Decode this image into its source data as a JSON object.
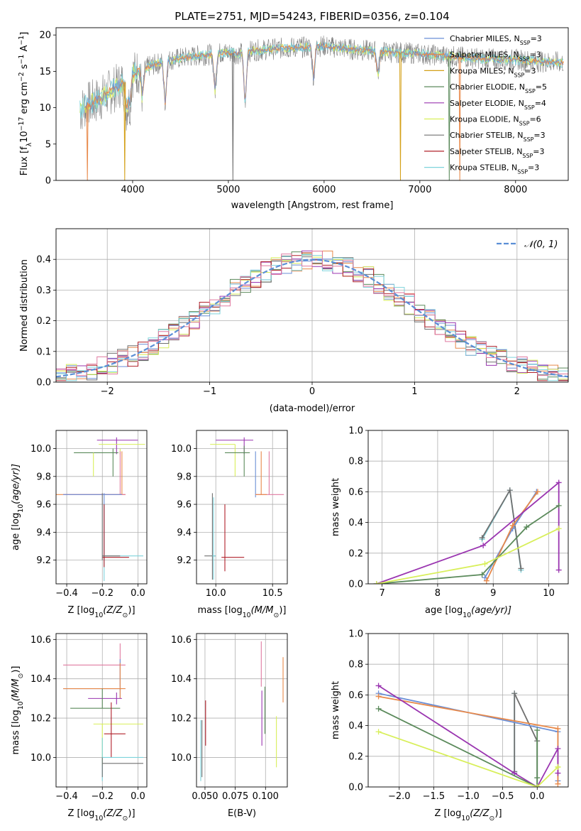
{
  "title": "PLATE=2751, MJD=54243, FIBERID=0356, z=0.104",
  "colors": {
    "chabrier_miles": "#6b8fd6",
    "salpeter_miles": "#e8894a",
    "kroupa_miles": "#d4a017",
    "chabrier_elodie": "#5b8a5b",
    "salpeter_elodie": "#9a35b0",
    "kroupa_elodie": "#d8ef5a",
    "chabrier_stelib": "#707070",
    "salpeter_stelib": "#b0202a",
    "kroupa_stelib": "#7ed3dc",
    "extra_pink": "#e07aa0",
    "normal_curve": "#5b8fd6"
  },
  "legend": [
    {
      "label": "Chabrier MILES, N",
      "sub": "SSP",
      "suffix": "=3",
      "color": "#6b8fd6"
    },
    {
      "label": "Salpeter MILES, N",
      "sub": "SSP",
      "suffix": "=3",
      "color": "#e8894a"
    },
    {
      "label": "Kroupa MILES, N",
      "sub": "SSP",
      "suffix": "=3",
      "color": "#d4a017"
    },
    {
      "label": "Chabrier ELODIE, N",
      "sub": "SSP",
      "suffix": "=5",
      "color": "#5b8a5b"
    },
    {
      "label": "Salpeter ELODIE, N",
      "sub": "SSP",
      "suffix": "=4",
      "color": "#9a35b0"
    },
    {
      "label": "Kroupa ELODIE, N",
      "sub": "SSP",
      "suffix": "=6",
      "color": "#d8ef5a"
    },
    {
      "label": "Chabrier STELIB, N",
      "sub": "SSP",
      "suffix": "=3",
      "color": "#707070"
    },
    {
      "label": "Salpeter STELIB, N",
      "sub": "SSP",
      "suffix": "=3",
      "color": "#b0202a"
    },
    {
      "label": "Kroupa STELIB, N",
      "sub": "SSP",
      "suffix": "=3",
      "color": "#7ed3dc"
    }
  ],
  "chart_data": [
    {
      "id": "spectrum",
      "type": "line",
      "xlabel": "wavelength [Angstrom, rest frame]",
      "ylabel": "Flux [f",
      "ylabel_sub": "λ",
      "ylabel_rest": "10",
      "ylabel_exp": "−17",
      "ylabel_end": " erg cm",
      "ylabel_exp2": "−2",
      "ylabel_end2": " s",
      "ylabel_exp3": "−1",
      "ylabel_end3": " A",
      "ylabel_exp4": "−1",
      "ylabel_close": "]",
      "xlim": [
        3200,
        8550
      ],
      "ylim": [
        0,
        21
      ],
      "xticks": [
        4000,
        5000,
        6000,
        7000,
        8000
      ],
      "yticks": [
        0,
        5,
        10,
        15,
        20
      ],
      "data_x": [
        3450,
        3500,
        3600,
        3700,
        3800,
        3900,
        4000,
        4100,
        4200,
        4300,
        4400,
        4500,
        4600,
        4700,
        4800,
        4900,
        5000,
        5100,
        5200,
        5300,
        5400,
        5500,
        5600,
        5700,
        5800,
        5900,
        6000,
        6100,
        6200,
        6300,
        6400,
        6500,
        6600,
        6700,
        6800,
        6900,
        7000,
        7100,
        7200,
        7300,
        7400,
        7500,
        7600,
        7700,
        7800,
        7900,
        8000,
        8100,
        8200,
        8300,
        8400,
        8500
      ],
      "data_y": [
        9.5,
        10.2,
        10.8,
        11.6,
        12.5,
        13.4,
        14.6,
        15.3,
        15.8,
        16.2,
        16.6,
        16.8,
        17.0,
        17.2,
        17.3,
        17.5,
        17.6,
        17.4,
        17.7,
        17.9,
        18.0,
        18.1,
        18.2,
        18.3,
        18.3,
        18.4,
        18.5,
        18.3,
        18.2,
        18.0,
        17.9,
        17.8,
        17.7,
        17.6,
        17.6,
        17.5,
        17.4,
        17.3,
        17.2,
        17.1,
        17.0,
        16.9,
        16.8,
        16.7,
        16.7,
        16.6,
        16.6,
        16.5,
        16.4,
        16.3,
        16.3,
        16.2
      ]
    },
    {
      "id": "residuals",
      "type": "line",
      "xlabel": "(data-model)/error",
      "ylabel": "Normed distribution",
      "xlim": [
        -2.5,
        2.5
      ],
      "ylim": [
        0,
        0.5
      ],
      "xticks": [
        -2,
        -1,
        0,
        1,
        2
      ],
      "yticks": [
        0.0,
        0.1,
        0.2,
        0.3,
        0.4
      ],
      "xtick_labels": [
        "−2",
        "−1",
        "0",
        "1",
        "2"
      ],
      "ytick_labels": [
        "0.0",
        "0.1",
        "0.2",
        "0.3",
        "0.4"
      ],
      "legend_label": "𝒩(0, 1)"
    },
    {
      "id": "age_vs_Z",
      "type": "scatter",
      "xlabel": "Z [log",
      "xlabel_sub": "10",
      "xlabel_rest": "(Z/Z",
      "xlabel_sub2": "⊙",
      "xlabel_close": ")]",
      "ylabel": "age  [log",
      "ylabel_sub": "10",
      "ylabel_rest": "(age/yr)]",
      "xlim": [
        -0.46,
        0.05
      ],
      "ylim": [
        9.03,
        10.13
      ],
      "xticks": [
        -0.4,
        -0.2,
        0.0
      ],
      "xtick_labels": [
        "−0.4",
        "−0.2",
        "0.0"
      ],
      "yticks": [
        9.2,
        9.4,
        9.6,
        9.8,
        10.0
      ],
      "ytick_labels": [
        "9.2",
        "9.4",
        "9.6",
        "9.8",
        "10.0"
      ],
      "points": [
        {
          "x": -0.12,
          "y": 10.06,
          "xe": [
            -0.23,
            0.0
          ],
          "ye": [
            9.96,
            10.08
          ],
          "c": "#9a35b0"
        },
        {
          "x": -0.1,
          "y": 10.03,
          "xe": [
            -0.22,
            0.04
          ],
          "ye": [
            9.96,
            10.0
          ],
          "c": "#d8ef5a"
        },
        {
          "x": -0.14,
          "y": 9.97,
          "xe": [
            -0.36,
            -0.11
          ],
          "ye": [
            9.8,
            10.0
          ],
          "c": "#5b8a5b"
        },
        {
          "x": -0.25,
          "y": 9.97,
          "xe": [
            -0.25,
            -0.25
          ],
          "ye": [
            9.8,
            9.97
          ],
          "c": "#d8ef5a"
        },
        {
          "x": -0.09,
          "y": 9.67,
          "xe": [
            -0.46,
            -0.07
          ],
          "ye": [
            9.67,
            9.98
          ],
          "c": "#e8894a"
        },
        {
          "x": -0.1,
          "y": 9.67,
          "xe": [
            -0.42,
            -0.07
          ],
          "ye": [
            9.67,
            9.98
          ],
          "c": "#e07aa0"
        },
        {
          "x": -0.19,
          "y": 9.67,
          "xe": [
            -0.42,
            -0.09
          ],
          "ye": [
            9.2,
            9.68
          ],
          "c": "#6b8fd6"
        },
        {
          "x": -0.19,
          "y": 9.23,
          "xe": [
            -0.2,
            0.03
          ],
          "ye": [
            9.05,
            9.6
          ],
          "c": "#7ed3dc"
        },
        {
          "x": -0.19,
          "y": 9.22,
          "xe": [
            -0.2,
            -0.05
          ],
          "ye": [
            9.15,
            9.6
          ],
          "c": "#b0202a"
        },
        {
          "x": -0.2,
          "y": 9.23,
          "xe": [
            -0.2,
            -0.1
          ],
          "ye": [
            9.2,
            9.68
          ],
          "c": "#707070"
        }
      ]
    },
    {
      "id": "age_vs_mass",
      "type": "scatter",
      "xlabel": "mass [log",
      "xlabel_sub": "10",
      "xlabel_rest": "(M/M",
      "xlabel_sub2": "⊙",
      "xlabel_close": ")]",
      "xlim": [
        9.83,
        10.63
      ],
      "ylim": [
        9.03,
        10.13
      ],
      "xticks": [
        10.0,
        10.5
      ],
      "xtick_labels": [
        "10.0",
        "10.5"
      ],
      "yticks": [
        9.2,
        9.4,
        9.6,
        9.8,
        10.0
      ],
      "ytick_labels": [
        "9.2",
        "9.4",
        "9.6",
        "9.8",
        "10.0"
      ],
      "points": [
        {
          "x": 10.25,
          "y": 10.06,
          "xe": [
            10.0,
            10.33
          ],
          "ye": [
            9.96,
            10.08
          ],
          "c": "#9a35b0"
        },
        {
          "x": 10.17,
          "y": 10.03,
          "xe": [
            9.95,
            10.17
          ],
          "ye": [
            9.8,
            10.03
          ],
          "c": "#d8ef5a"
        },
        {
          "x": 10.25,
          "y": 9.97,
          "xe": [
            10.08,
            10.3
          ],
          "ye": [
            9.8,
            10.02
          ],
          "c": "#5b8a5b"
        },
        {
          "x": 10.35,
          "y": 9.97,
          "xe": [
            10.35,
            10.35
          ],
          "ye": [
            9.65,
            9.98
          ],
          "c": "#6b8fd6"
        },
        {
          "x": 10.47,
          "y": 9.67,
          "xe": [
            10.35,
            10.6
          ],
          "ye": [
            9.67,
            9.98
          ],
          "c": "#e07aa0"
        },
        {
          "x": 10.4,
          "y": 9.67,
          "xe": [
            10.35,
            10.45
          ],
          "ye": [
            9.67,
            9.98
          ],
          "c": "#e8894a"
        },
        {
          "x": 9.97,
          "y": 9.23,
          "xe": [
            9.9,
            10.0
          ],
          "ye": [
            9.06,
            9.68
          ],
          "c": "#707070"
        },
        {
          "x": 9.98,
          "y": 9.23,
          "xe": [
            9.97,
            10.0
          ],
          "ye": [
            9.06,
            9.65
          ],
          "c": "#7ed3dc"
        },
        {
          "x": 10.08,
          "y": 9.22,
          "xe": [
            10.05,
            10.25
          ],
          "ye": [
            9.12,
            9.6
          ],
          "c": "#b0202a"
        }
      ]
    },
    {
      "id": "mass_weight_vs_age",
      "type": "line",
      "xlabel": "age  [log",
      "xlabel_sub": "10",
      "xlabel_rest": "(age/yr)]",
      "ylabel": "mass weight",
      "xlim": [
        6.75,
        10.35
      ],
      "ylim": [
        0,
        1.0
      ],
      "xticks": [
        7,
        8,
        9,
        10
      ],
      "xtick_labels": [
        "7",
        "8",
        "9",
        "10"
      ],
      "yticks": [
        0.0,
        0.2,
        0.4,
        0.6,
        0.8,
        1.0
      ],
      "ytick_labels": [
        "0.0",
        "0.2",
        "0.4",
        "0.6",
        "0.8",
        "1.0"
      ],
      "series": [
        {
          "c": "#7ed3dc",
          "x": [
            8.8,
            9.3,
            9.5
          ],
          "y": [
            0.29,
            0.61,
            0.09
          ]
        },
        {
          "c": "#707070",
          "x": [
            8.8,
            9.3,
            9.5
          ],
          "y": [
            0.3,
            0.61,
            0.1
          ]
        },
        {
          "c": "#6b8fd6",
          "x": [
            8.85,
            9.35,
            9.78
          ],
          "y": [
            0.04,
            0.36,
            0.6
          ]
        },
        {
          "c": "#e8894a",
          "x": [
            8.88,
            9.35,
            9.8
          ],
          "y": [
            0.02,
            0.38,
            0.6
          ]
        },
        {
          "c": "#9a35b0",
          "x": [
            6.9,
            8.82,
            10.18,
            10.18
          ],
          "y": [
            0.0,
            0.25,
            0.66,
            0.09
          ]
        },
        {
          "c": "#5b8a5b",
          "x": [
            6.9,
            8.8,
            9.6,
            10.18
          ],
          "y": [
            0.0,
            0.06,
            0.37,
            0.51
          ]
        },
        {
          "c": "#d8ef5a",
          "x": [
            6.9,
            8.85,
            10.18
          ],
          "y": [
            0.0,
            0.13,
            0.36
          ]
        }
      ]
    },
    {
      "id": "mass_vs_Z",
      "type": "scatter",
      "xlabel": "Z [log",
      "xlabel_sub": "10",
      "xlabel_rest": "(Z/Z",
      "xlabel_sub2": "⊙",
      "xlabel_close": ")]",
      "ylabel": "mass [log",
      "ylabel_sub": "10",
      "ylabel_rest": "(M/M",
      "ylabel_sub2": "⊙",
      "ylabel_close": ")]",
      "xlim": [
        -0.46,
        0.05
      ],
      "ylim": [
        9.85,
        10.63
      ],
      "xticks": [
        -0.4,
        -0.2,
        0.0
      ],
      "xtick_labels": [
        "−0.4",
        "−0.2",
        "0.0"
      ],
      "yticks": [
        10.0,
        10.2,
        10.4,
        10.6
      ],
      "ytick_labels": [
        "10.0",
        "10.2",
        "10.4",
        "10.6"
      ],
      "points": [
        {
          "x": -0.1,
          "y": 10.47,
          "xe": [
            -0.42,
            -0.07
          ],
          "ye": [
            10.36,
            10.58
          ],
          "c": "#e07aa0"
        },
        {
          "x": -0.1,
          "y": 10.35,
          "xe": [
            -0.42,
            -0.09
          ],
          "ye": [
            10.3,
            10.5
          ],
          "c": "#6b8fd6"
        },
        {
          "x": -0.1,
          "y": 10.35,
          "xe": [
            -0.42,
            -0.07
          ],
          "ye": [
            10.3,
            10.48
          ],
          "c": "#e8894a"
        },
        {
          "x": -0.12,
          "y": 10.3,
          "xe": [
            -0.28,
            -0.09
          ],
          "ye": [
            10.27,
            10.33
          ],
          "c": "#9a35b0"
        },
        {
          "x": -0.2,
          "y": 10.25,
          "xe": [
            -0.38,
            -0.1
          ],
          "ye": [
            10.25,
            10.35
          ],
          "c": "#5b8a5b"
        },
        {
          "x": -0.2,
          "y": 10.17,
          "xe": [
            -0.25,
            0.03
          ],
          "ye": [
            9.96,
            10.17
          ],
          "c": "#d8ef5a"
        },
        {
          "x": -0.15,
          "y": 10.12,
          "xe": [
            -0.19,
            -0.07
          ],
          "ye": [
            10.0,
            10.28
          ],
          "c": "#b0202a"
        },
        {
          "x": -0.2,
          "y": 10.0,
          "xe": [
            -0.2,
            0.03
          ],
          "ye": [
            9.88,
            10.1
          ],
          "c": "#7ed3dc"
        },
        {
          "x": -0.2,
          "y": 9.97,
          "xe": [
            -0.2,
            0.03
          ],
          "ye": [
            9.9,
            10.0
          ],
          "c": "#707070"
        }
      ]
    },
    {
      "id": "mass_vs_ebv",
      "type": "scatter",
      "xlabel": "E(B-V)",
      "xlim": [
        0.043,
        0.118
      ],
      "ylim": [
        9.85,
        10.63
      ],
      "xticks": [
        0.05,
        0.075,
        0.1
      ],
      "xtick_labels": [
        "0.050",
        "0.075",
        "0.100"
      ],
      "yticks": [
        10.0,
        10.2,
        10.4,
        10.6
      ],
      "ytick_labels": [
        "10.0",
        "10.2",
        "10.4",
        "10.6"
      ],
      "points": [
        {
          "x": 0.0465,
          "y": 10.0,
          "ye": [
            9.88,
            10.19
          ],
          "c": "#7ed3dc"
        },
        {
          "x": 0.0475,
          "y": 10.0,
          "ye": [
            9.9,
            10.19
          ],
          "c": "#707070"
        },
        {
          "x": 0.0505,
          "y": 10.17,
          "ye": [
            10.06,
            10.29
          ],
          "c": "#b0202a"
        },
        {
          "x": 0.0965,
          "y": 10.47,
          "ye": [
            10.36,
            10.59
          ],
          "c": "#e07aa0"
        },
        {
          "x": 0.097,
          "y": 10.2,
          "ye": [
            10.06,
            10.34
          ],
          "c": "#9a35b0"
        },
        {
          "x": 0.0995,
          "y": 10.24,
          "ye": [
            10.12,
            10.36
          ],
          "c": "#5b8a5b"
        },
        {
          "x": 0.109,
          "y": 10.1,
          "ye": [
            9.95,
            10.21
          ],
          "c": "#d8ef5a"
        },
        {
          "x": 0.1145,
          "y": 10.39,
          "ye": [
            10.28,
            10.51
          ],
          "c": "#e8894a"
        }
      ]
    },
    {
      "id": "mass_weight_vs_Z",
      "type": "line",
      "xlabel": "Z [log",
      "xlabel_sub": "10",
      "xlabel_rest": "(Z/Z",
      "xlabel_sub2": "⊙",
      "xlabel_close": ")]",
      "ylabel": "mass weight",
      "xlim": [
        -2.45,
        0.45
      ],
      "ylim": [
        0,
        1.0
      ],
      "xticks": [
        -2.0,
        -1.5,
        -1.0,
        -0.5,
        0.0
      ],
      "xtick_labels": [
        "−2.0",
        "−1.5",
        "−1.0",
        "−0.5",
        "0.0"
      ],
      "yticks": [
        0.0,
        0.2,
        0.4,
        0.6,
        0.8,
        1.0
      ],
      "ytick_labels": [
        "0.0",
        "0.2",
        "0.4",
        "0.6",
        "0.8",
        "1.0"
      ],
      "series": [
        {
          "c": "#7ed3dc",
          "x": [
            -0.33,
            -0.33,
            -0.33
          ],
          "y": [
            0.09,
            0.61,
            0.1
          ]
        },
        {
          "c": "#707070",
          "x": [
            -0.33,
            -0.33,
            0.0,
            0.0
          ],
          "y": [
            0.1,
            0.61,
            0.3,
            0.0
          ]
        },
        {
          "c": "#6b8fd6",
          "x": [
            -2.3,
            0.3,
            0.3
          ],
          "y": [
            0.61,
            0.36,
            0.04
          ]
        },
        {
          "c": "#e8894a",
          "x": [
            -2.3,
            0.3,
            0.3
          ],
          "y": [
            0.59,
            0.38,
            0.02
          ]
        },
        {
          "c": "#9a35b0",
          "x": [
            -2.3,
            -0.33,
            0.0,
            0.3,
            0.3
          ],
          "y": [
            0.66,
            0.09,
            0.0,
            0.25,
            0.09
          ]
        },
        {
          "c": "#5b8a5b",
          "x": [
            -2.3,
            0.0,
            0.0,
            0.0
          ],
          "y": [
            0.51,
            0.0,
            0.37,
            0.06
          ]
        },
        {
          "c": "#d8ef5a",
          "x": [
            -2.3,
            0.0,
            0.3,
            0.3
          ],
          "y": [
            0.36,
            0.0,
            0.13,
            0.13
          ]
        }
      ]
    }
  ]
}
